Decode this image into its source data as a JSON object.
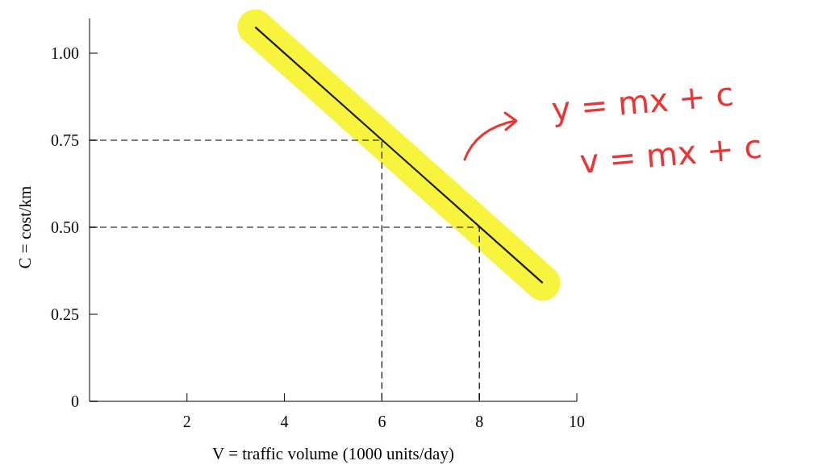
{
  "chart_data": {
    "type": "line",
    "xlabel": "V = traffic volume (1000 units/day)",
    "ylabel": "C = cost/km",
    "xlim": [
      0,
      10
    ],
    "xticks": [
      2,
      4,
      6,
      8,
      10
    ],
    "ylim": [
      0,
      1.1
    ],
    "yticks": [
      0,
      0.25,
      {
        "value": 0.5,
        "label": "0.50"
      },
      0.75,
      {
        "value": 1,
        "label": "1.00"
      }
    ],
    "series": [
      {
        "color": "#000000",
        "x": [
          0,
          6,
          6
        ],
        "values": [
          0.75,
          0.75,
          0
        ],
        "line_style": "dashed"
      },
      {
        "color": "#000000",
        "x": [
          0,
          8,
          8
        ],
        "values": [
          0.5,
          0.5,
          0
        ],
        "line_style": "dashed"
      },
      {
        "color": "#1a1a1a",
        "x": [
          3.4,
          9.3
        ],
        "values": [
          1.075,
          0.34
        ]
      }
    ],
    "annotations": [
      "y = mx + c",
      "v = mx + c"
    ]
  }
}
